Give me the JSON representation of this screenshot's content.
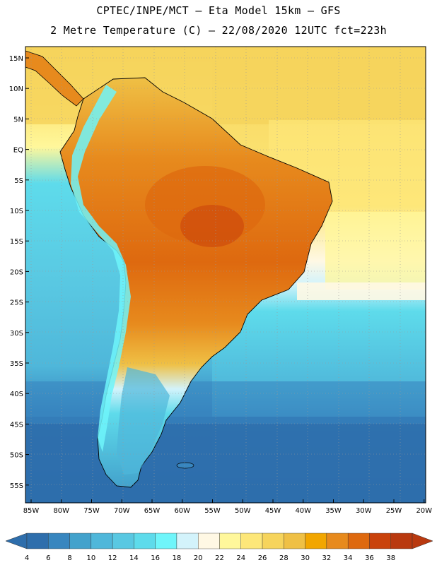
{
  "title": {
    "line1": "CPTEC/INPE/MCT –  Eta Model 15km – GFS",
    "line2": "2 Metre Temperature (C) – 22/08/2020 12UTC fct=223h"
  },
  "axes": {
    "lat_labels": [
      "15N",
      "10N",
      "5N",
      "EQ",
      "5S",
      "10S",
      "15S",
      "20S",
      "25S",
      "30S",
      "35S",
      "40S",
      "45S",
      "50S",
      "55S"
    ],
    "lon_labels": [
      "85W",
      "80W",
      "75W",
      "70W",
      "65W",
      "60W",
      "55W",
      "50W",
      "45W",
      "40W",
      "35W",
      "30W",
      "25W",
      "20W"
    ],
    "lat_range": [
      16,
      -58
    ],
    "lon_range": [
      -85,
      -20
    ]
  },
  "colorbar": {
    "ticks": [
      "4",
      "6",
      "8",
      "10",
      "12",
      "14",
      "16",
      "18",
      "20",
      "22",
      "24",
      "26",
      "28",
      "30",
      "32",
      "34",
      "36",
      "38"
    ],
    "colors": [
      "#2e6eac",
      "#3886bf",
      "#43a2cc",
      "#4fb7da",
      "#59c8e2",
      "#5edbeb",
      "#6ff5fa",
      "#d3f3fb",
      "#fff8e4",
      "#fff79b",
      "#fde779",
      "#f6d45c",
      "#efc045",
      "#f2a600",
      "#e78a1d",
      "#de690f",
      "#c9420b",
      "#b9390f"
    ]
  },
  "palette": {
    "ocean_north": "#f6d45c",
    "ocean_tropic_light": "#fde779",
    "ocean_cool": "#5edbeb",
    "ocean_cold": "#3886bf",
    "ocean_coldest": "#2e6eac",
    "land_hot": "#e78a1d",
    "land_hottest": "#c9420b",
    "andes": "#6ff5fa"
  }
}
